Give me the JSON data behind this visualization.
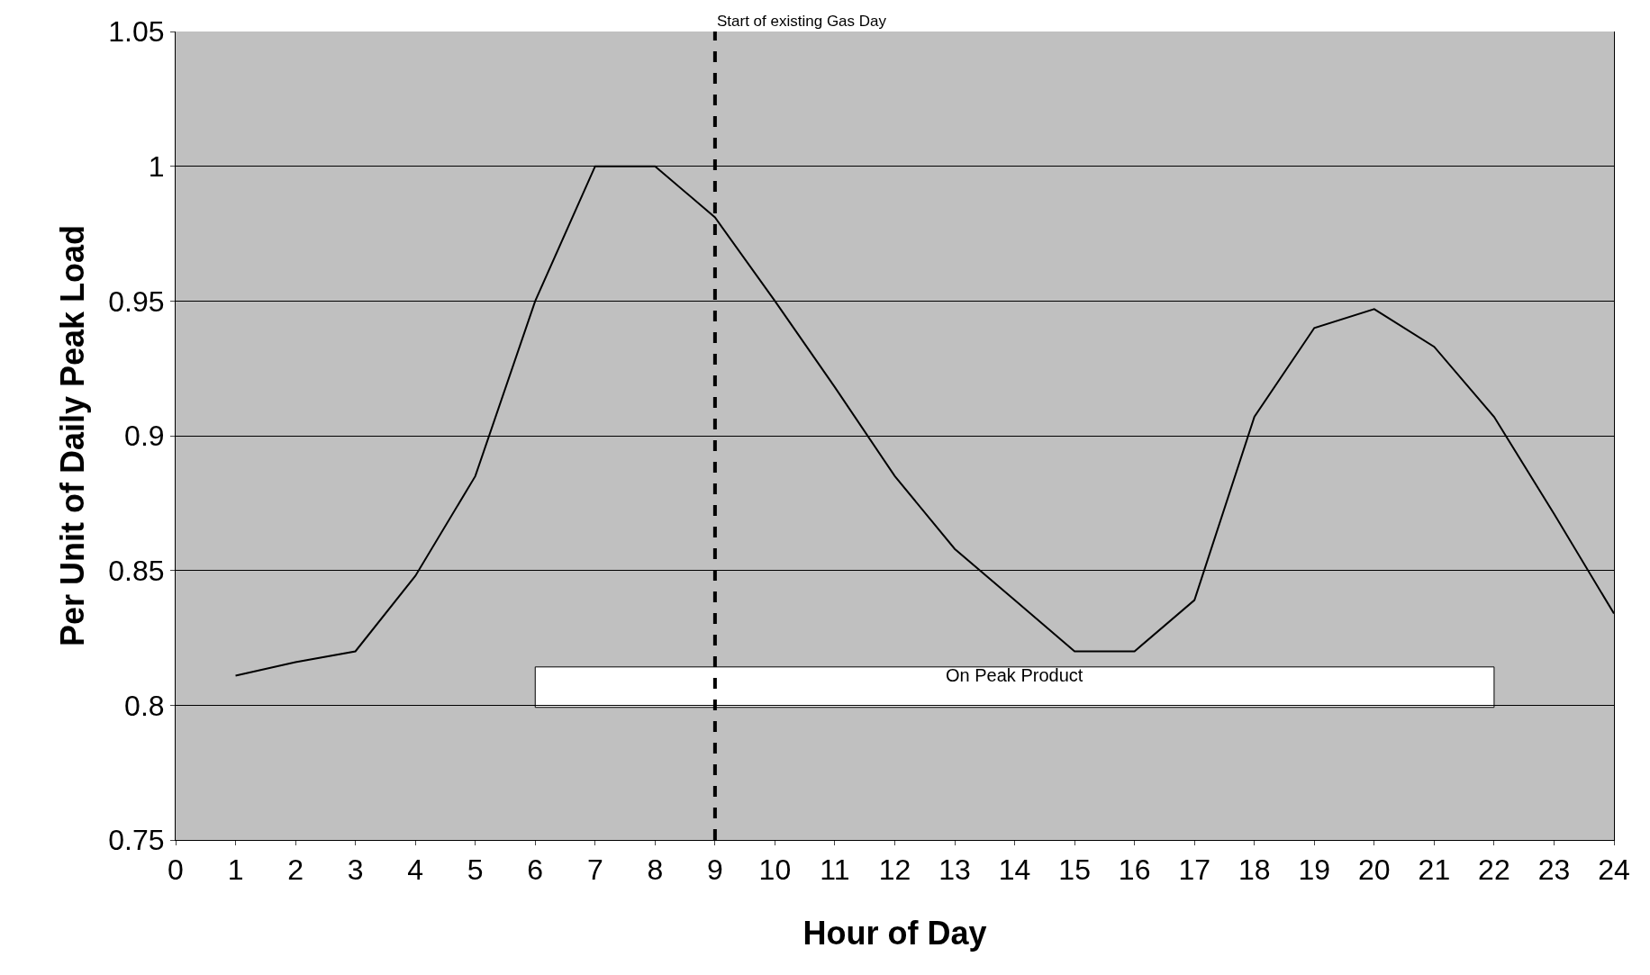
{
  "chart_data": {
    "type": "line",
    "xlabel": "Hour of Day",
    "ylabel": "Per Unit of Daily Peak Load",
    "x": [
      1,
      2,
      3,
      4,
      5,
      6,
      7,
      8,
      9,
      10,
      11,
      12,
      13,
      14,
      15,
      16,
      17,
      18,
      19,
      20,
      21,
      22,
      23,
      24
    ],
    "series": [
      {
        "color": "#000000",
        "values": [
          0.811,
          0.816,
          0.82,
          0.848,
          0.885,
          0.95,
          1.0,
          1.0,
          0.981,
          0.95,
          0.918,
          0.885,
          0.858,
          0.839,
          0.82,
          0.82,
          0.839,
          0.907,
          0.94,
          0.947,
          0.933,
          0.907,
          0.871,
          0.834
        ]
      }
    ],
    "xlim": [
      0,
      24
    ],
    "xticks": [
      0,
      1,
      2,
      3,
      4,
      5,
      6,
      7,
      8,
      9,
      10,
      11,
      12,
      13,
      14,
      15,
      16,
      17,
      18,
      19,
      20,
      21,
      22,
      23,
      24
    ],
    "ylim": [
      0.75,
      1.05
    ],
    "yticks": [
      0.75,
      0.8,
      0.85,
      0.9,
      0.95,
      1,
      1.05
    ],
    "ref_lines": [
      {
        "axis": "x",
        "value": 9,
        "label": "Start of existing Gas Day",
        "color": "#000000",
        "line_style": "dashed"
      }
    ],
    "bands": [
      {
        "axis": "x",
        "from": 6,
        "to": 22,
        "label": "On Peak Product",
        "color": "#ffffff"
      }
    ],
    "grid": "y",
    "marker": "none",
    "line_style": "solid"
  }
}
